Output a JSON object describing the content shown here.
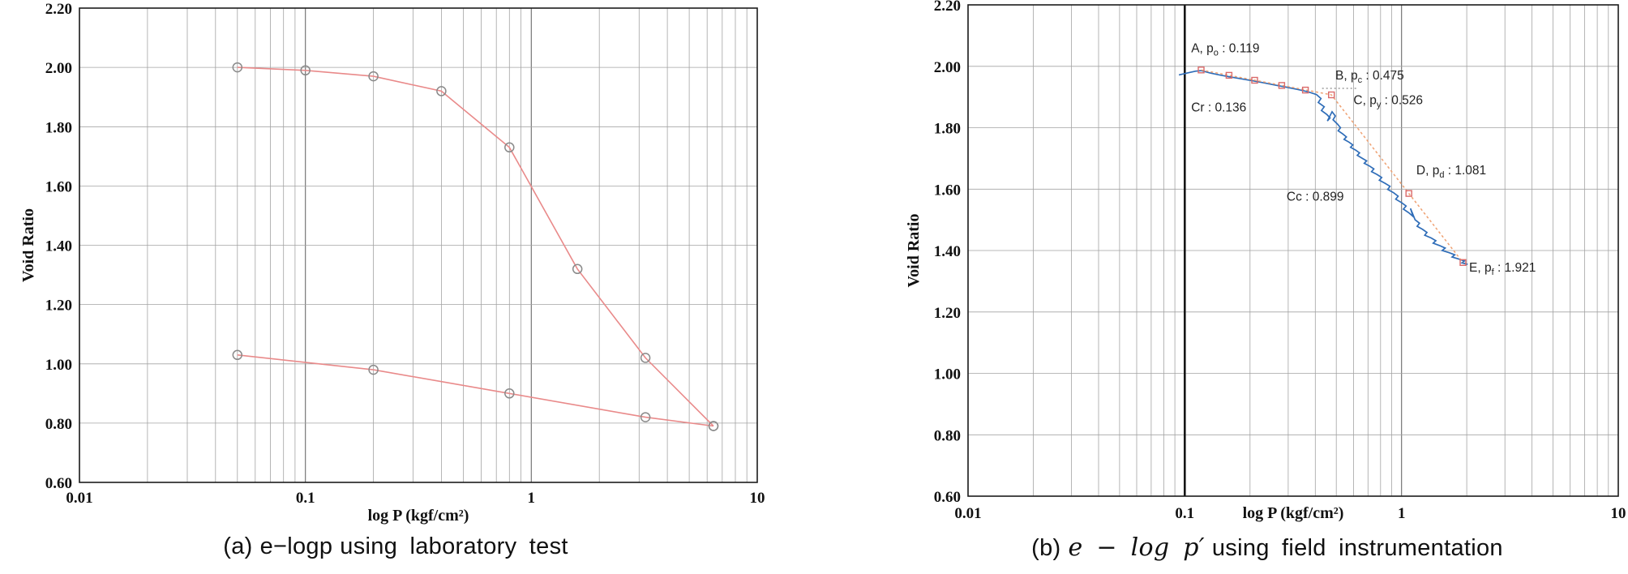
{
  "captions": {
    "a": {
      "prefix": "(a)",
      "math": "e−logp",
      "suffix": "using laboratory test"
    },
    "b": {
      "prefix": "(b)",
      "math": "e − log p′",
      "suffix": "using field instrumentation"
    }
  },
  "chart_data": [
    {
      "type": "line",
      "title": "",
      "xlabel": "log P (kgf/cm²)",
      "ylabel": "Void Ratio",
      "xscale": "log",
      "xlim": [
        0.01,
        10
      ],
      "ylim": [
        0.6,
        2.2
      ],
      "grid": true,
      "xticks": {
        "values": [
          0.01,
          0.1,
          1,
          10
        ],
        "labels": [
          "0.01",
          "0.1",
          "1",
          "10"
        ]
      },
      "yticks": {
        "values": [
          0.6,
          0.8,
          1.0,
          1.2,
          1.4,
          1.6,
          1.8,
          2.0,
          2.2
        ],
        "labels": [
          "0.60",
          "0.80",
          "1.00",
          "1.20",
          "1.40",
          "1.60",
          "1.80",
          "2.00",
          "2.20"
        ]
      },
      "series": [
        {
          "key": "loading-curve",
          "name": "laboratory compression curve",
          "color": "#e98a8a",
          "marker": "circle",
          "marker_color": "#8a8a8a",
          "width": 1.6,
          "points": [
            [
              0.05,
              2.0
            ],
            [
              0.1,
              1.99
            ],
            [
              0.2,
              1.97
            ],
            [
              0.4,
              1.92
            ],
            [
              0.8,
              1.73
            ],
            [
              1.6,
              1.32
            ],
            [
              3.2,
              1.02
            ],
            [
              6.4,
              0.79
            ]
          ]
        },
        {
          "key": "reload-curve",
          "name": "laboratory recompression curve",
          "color": "#e98a8a",
          "marker": "circle",
          "marker_color": "#8a8a8a",
          "width": 1.6,
          "points": [
            [
              0.05,
              1.03
            ],
            [
              0.2,
              0.98
            ],
            [
              0.8,
              0.9
            ],
            [
              3.2,
              0.82
            ],
            [
              6.4,
              0.79
            ]
          ]
        }
      ]
    },
    {
      "type": "line",
      "title": "",
      "xlabel": "log P (kgf/cm²)",
      "ylabel": "Void Ratio",
      "xscale": "log",
      "xlim": [
        0.01,
        10
      ],
      "ylim": [
        0.6,
        2.2
      ],
      "grid": true,
      "emphasis_x": 0.1,
      "xticks": {
        "values": [
          0.01,
          0.1,
          1,
          10
        ],
        "labels": [
          "0.01",
          "0.1",
          "1",
          "10"
        ]
      },
      "yticks": {
        "values": [
          0.6,
          0.8,
          1.0,
          1.2,
          1.4,
          1.6,
          1.8,
          2.0,
          2.2
        ],
        "labels": [
          "0.60",
          "0.80",
          "1.00",
          "1.20",
          "1.40",
          "1.60",
          "1.80",
          "2.00",
          "2.20"
        ]
      },
      "leader_lines": [
        {
          "x1": 0.43,
          "y1": 1.928,
          "x2": 0.63,
          "y2": 1.928
        }
      ],
      "series": [
        {
          "key": "field-measured",
          "name": "field instrumentation measurement",
          "color": "#2f6db8",
          "marker": "none",
          "width": 1.7,
          "points": [
            [
              0.094,
              1.972
            ],
            [
              0.104,
              1.979
            ],
            [
              0.112,
              1.984
            ],
            [
              0.119,
              1.986
            ],
            [
              0.131,
              1.978
            ],
            [
              0.146,
              1.971
            ],
            [
              0.163,
              1.965
            ],
            [
              0.183,
              1.959
            ],
            [
              0.206,
              1.953
            ],
            [
              0.232,
              1.946
            ],
            [
              0.261,
              1.939
            ],
            [
              0.294,
              1.932
            ],
            [
              0.33,
              1.925
            ],
            [
              0.37,
              1.917
            ],
            [
              0.405,
              1.908
            ],
            [
              0.425,
              1.895
            ],
            [
              0.413,
              1.882
            ],
            [
              0.44,
              1.868
            ],
            [
              0.427,
              1.856
            ],
            [
              0.452,
              1.843
            ],
            [
              0.468,
              1.832
            ],
            [
              0.455,
              1.822
            ],
            [
              0.478,
              1.852
            ],
            [
              0.495,
              1.838
            ],
            [
              0.483,
              1.826
            ],
            [
              0.506,
              1.812
            ],
            [
              0.523,
              1.8
            ],
            [
              0.51,
              1.79
            ],
            [
              0.535,
              1.78
            ],
            [
              0.557,
              1.77
            ],
            [
              0.543,
              1.762
            ],
            [
              0.572,
              1.753
            ],
            [
              0.596,
              1.744
            ],
            [
              0.582,
              1.736
            ],
            [
              0.614,
              1.727
            ],
            [
              0.64,
              1.718
            ],
            [
              0.625,
              1.71
            ],
            [
              0.66,
              1.7
            ],
            [
              0.69,
              1.692
            ],
            [
              0.673,
              1.684
            ],
            [
              0.712,
              1.675
            ],
            [
              0.745,
              1.666
            ],
            [
              0.727,
              1.657
            ],
            [
              0.77,
              1.648
            ],
            [
              0.81,
              1.638
            ],
            [
              0.79,
              1.629
            ],
            [
              0.84,
              1.619
            ],
            [
              0.885,
              1.609
            ],
            [
              0.863,
              1.599
            ],
            [
              0.92,
              1.588
            ],
            [
              0.965,
              1.577
            ],
            [
              0.94,
              1.567
            ],
            [
              1.0,
              1.556
            ],
            [
              1.05,
              1.545
            ],
            [
              1.02,
              1.535
            ],
            [
              1.08,
              1.523
            ],
            [
              1.13,
              1.511
            ],
            [
              1.1,
              1.537
            ],
            [
              1.155,
              1.5
            ],
            [
              1.21,
              1.489
            ],
            [
              1.18,
              1.479
            ],
            [
              1.25,
              1.469
            ],
            [
              1.31,
              1.459
            ],
            [
              1.28,
              1.45
            ],
            [
              1.37,
              1.441
            ],
            [
              1.44,
              1.432
            ],
            [
              1.4,
              1.424
            ],
            [
              1.5,
              1.416
            ],
            [
              1.59,
              1.408
            ],
            [
              1.54,
              1.4
            ],
            [
              1.66,
              1.393
            ],
            [
              1.76,
              1.386
            ],
            [
              1.71,
              1.379
            ],
            [
              1.84,
              1.372
            ],
            [
              1.95,
              1.366
            ],
            [
              1.9,
              1.36
            ],
            [
              2.02,
              1.355
            ]
          ]
        },
        {
          "key": "interpreted-fit",
          "name": "interpreted compression line (Cr / Cc fit)",
          "color": "#efa071",
          "marker": "none",
          "dash": true,
          "width": 1.5,
          "points": [
            [
              0.119,
              1.988
            ],
            [
              0.475,
              1.907
            ],
            [
              1.081,
              1.586
            ],
            [
              1.921,
              1.361
            ]
          ]
        },
        {
          "key": "fit-markers",
          "name": "interpreted points",
          "color": "#da6a6a",
          "marker": "square",
          "line": false,
          "points": [
            [
              0.119,
              1.988
            ],
            [
              0.16,
              1.9705
            ],
            [
              0.21,
              1.9545
            ],
            [
              0.28,
              1.9375
            ],
            [
              0.36,
              1.9226
            ],
            [
              0.475,
              1.907
            ],
            [
              1.081,
              1.586
            ],
            [
              1.921,
              1.361
            ]
          ]
        }
      ],
      "annotations": [
        {
          "key": "point-a",
          "x": 0.107,
          "y": 2.045,
          "parts": [
            {
              "t": "A, p"
            },
            {
              "t": "o",
              "sub": true
            },
            {
              "t": " : 0.119"
            }
          ]
        },
        {
          "key": "cr",
          "x": 0.107,
          "y": 1.853,
          "parts": [
            {
              "t": "Cr : 0.136"
            }
          ]
        },
        {
          "key": "point-b",
          "x": 0.495,
          "y": 1.957,
          "parts": [
            {
              "t": "B, p"
            },
            {
              "t": "c",
              "sub": true
            },
            {
              "t": " : 0.475"
            }
          ]
        },
        {
          "key": "point-c",
          "x": 0.6,
          "y": 1.876,
          "parts": [
            {
              "t": "C, p"
            },
            {
              "t": "y",
              "sub": true
            },
            {
              "t": " : 0.526"
            }
          ]
        },
        {
          "key": "cc",
          "x": 0.295,
          "y": 1.562,
          "parts": [
            {
              "t": "Cc : 0.899"
            }
          ]
        },
        {
          "key": "point-d",
          "x": 1.17,
          "y": 1.648,
          "parts": [
            {
              "t": "D, p"
            },
            {
              "t": "d",
              "sub": true
            },
            {
              "t": " : 1.081"
            }
          ]
        },
        {
          "key": "point-e",
          "x": 2.05,
          "y": 1.332,
          "parts": [
            {
              "t": "E, p"
            },
            {
              "t": "f",
              "sub": true
            },
            {
              "t": " : 1.921"
            }
          ]
        }
      ]
    }
  ]
}
